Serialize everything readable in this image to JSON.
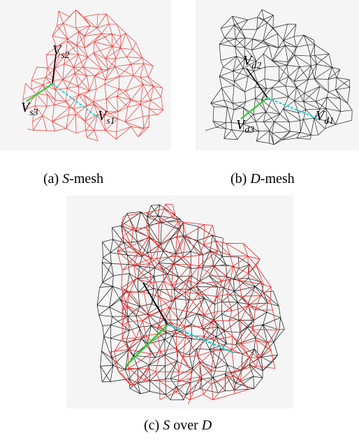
{
  "panels": [
    {
      "caption": [
        "(a)",
        "S",
        "-mesh"
      ],
      "vertices": [
        {
          "main": "V",
          "sub": "s2"
        },
        {
          "main": "V",
          "sub": "s3"
        },
        {
          "main": "V",
          "sub": "s1"
        }
      ]
    },
    {
      "caption": [
        "(b)",
        "D",
        "-mesh"
      ],
      "vertices": [
        {
          "main": "V",
          "sub": "d2"
        },
        {
          "main": "V",
          "sub": "d3"
        },
        {
          "main": "V",
          "sub": "d1"
        }
      ]
    },
    {
      "caption": [
        "(c)",
        "S",
        "over",
        "D"
      ]
    }
  ]
}
